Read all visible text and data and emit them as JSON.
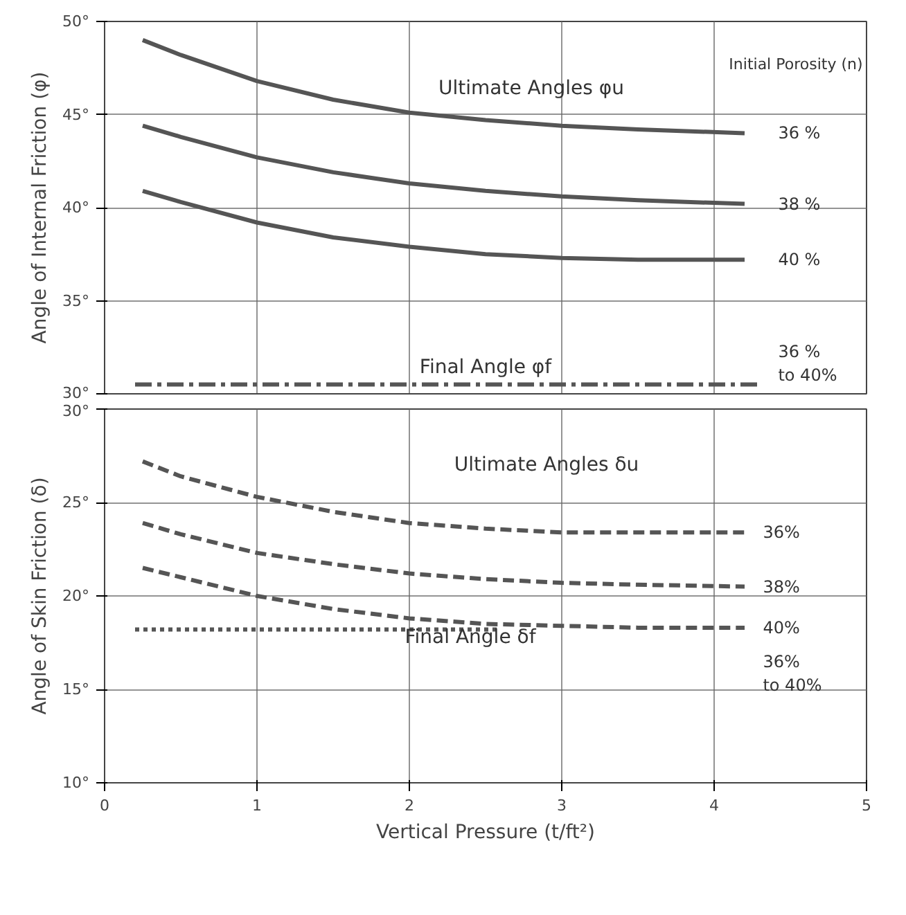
{
  "chart_data": [
    {
      "type": "line",
      "ylabel": "Angle of Internal Friction (φ)",
      "xlim": [
        0,
        5
      ],
      "ylim": [
        30,
        50
      ],
      "xticks": [
        0,
        1,
        2,
        3,
        4,
        5
      ],
      "yticks": [
        {
          "value": 30,
          "label": "30°"
        },
        {
          "value": 35,
          "label": "35°"
        },
        {
          "value": 40,
          "label": "40°"
        },
        {
          "value": 45,
          "label": "45°"
        },
        {
          "value": 50,
          "label": "50°"
        }
      ],
      "grid": true,
      "tick_labels": "y",
      "legend": false,
      "line_style": "solid",
      "series": [
        {
          "name": "36 %",
          "color": "#555555",
          "x": [
            0.25,
            0.5,
            1,
            1.5,
            2,
            2.5,
            3,
            3.5,
            4.2
          ],
          "values": [
            49.0,
            48.2,
            46.8,
            45.8,
            45.1,
            44.7,
            44.4,
            44.2,
            44.0
          ]
        },
        {
          "name": "38 %",
          "color": "#555555",
          "x": [
            0.25,
            0.5,
            1,
            1.5,
            2,
            2.5,
            3,
            3.5,
            4.2
          ],
          "values": [
            44.4,
            43.8,
            42.7,
            41.9,
            41.3,
            40.9,
            40.6,
            40.4,
            40.2
          ]
        },
        {
          "name": "40 %",
          "color": "#555555",
          "x": [
            0.25,
            0.5,
            1,
            1.5,
            2,
            2.5,
            3,
            3.5,
            4.2
          ],
          "values": [
            40.9,
            40.3,
            39.2,
            38.4,
            37.9,
            37.5,
            37.3,
            37.2,
            37.2
          ]
        },
        {
          "name": "36 % to 40%",
          "color": "#555555",
          "line_style": "dashdot",
          "x": [
            0.2,
            4.3
          ],
          "values": [
            30.5,
            30.5
          ]
        }
      ],
      "annotations": [
        "Ultimate Angles φu",
        "Initial Porosity (n)",
        "Final Angle φf"
      ]
    },
    {
      "type": "line",
      "ylabel": "Angle of Skin Friction (δ)",
      "xlabel": "Vertical Pressure (t/ft²)",
      "xlim": [
        0,
        5
      ],
      "ylim": [
        10,
        30
      ],
      "xticks": [
        0,
        1,
        2,
        3,
        4,
        5
      ],
      "yticks": [
        {
          "value": 10,
          "label": "10°"
        },
        {
          "value": 15,
          "label": "15°"
        },
        {
          "value": 20,
          "label": "20°"
        },
        {
          "value": 25,
          "label": "25°"
        },
        {
          "value": 30,
          "label": "30°"
        }
      ],
      "grid": true,
      "legend": false,
      "line_style": "dashed",
      "series": [
        {
          "name": "36%",
          "color": "#555555",
          "x": [
            0.25,
            0.5,
            1,
            1.5,
            2,
            2.5,
            3,
            3.5,
            4.2
          ],
          "values": [
            27.2,
            26.4,
            25.3,
            24.5,
            23.9,
            23.6,
            23.4,
            23.4,
            23.4
          ]
        },
        {
          "name": "38%",
          "color": "#555555",
          "x": [
            0.25,
            0.5,
            1,
            1.5,
            2,
            2.5,
            3,
            3.5,
            4.2
          ],
          "values": [
            23.9,
            23.3,
            22.3,
            21.7,
            21.2,
            20.9,
            20.7,
            20.6,
            20.5
          ]
        },
        {
          "name": "40%",
          "color": "#555555",
          "x": [
            0.25,
            0.5,
            1,
            1.5,
            2,
            2.5,
            3,
            3.5,
            4.2
          ],
          "values": [
            21.5,
            21.0,
            20.0,
            19.3,
            18.8,
            18.5,
            18.4,
            18.3,
            18.3
          ]
        },
        {
          "name": "36% to 40%",
          "color": "#555555",
          "line_style": "dotted",
          "x": [
            0.2,
            2.6
          ],
          "values": [
            18.2,
            18.2
          ]
        }
      ],
      "annotations": [
        "Ultimate Angles δu",
        "Final Angle δf"
      ]
    }
  ]
}
